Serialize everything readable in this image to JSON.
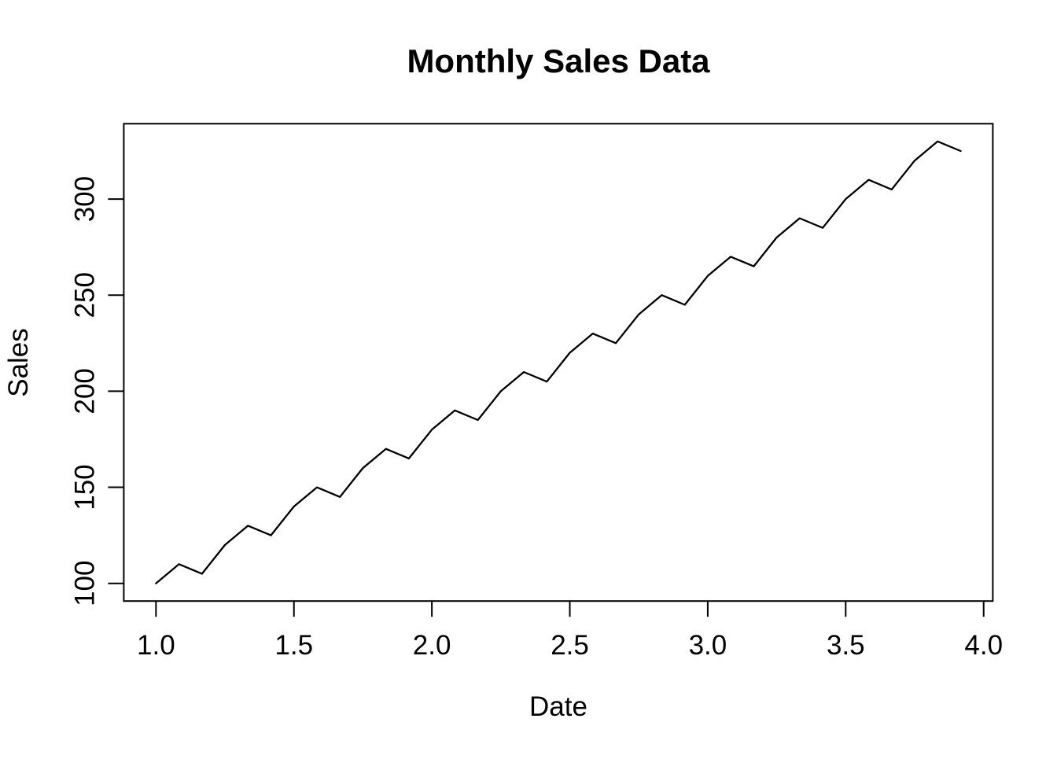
{
  "figure": {
    "background": "#ffffff",
    "foreground": "#000000"
  },
  "chart_data": {
    "type": "line",
    "title": "Monthly Sales Data",
    "xlabel": "Date",
    "ylabel": "Sales",
    "line_color": "#000000",
    "x": [
      1.0,
      1.0833,
      1.1667,
      1.25,
      1.3333,
      1.4167,
      1.5,
      1.5833,
      1.6667,
      1.75,
      1.8333,
      1.9167,
      2.0,
      2.0833,
      2.1667,
      2.25,
      2.3333,
      2.4167,
      2.5,
      2.5833,
      2.6667,
      2.75,
      2.8333,
      2.9167,
      3.0,
      3.0833,
      3.1667,
      3.25,
      3.3333,
      3.4167,
      3.5,
      3.5833,
      3.6667,
      3.75,
      3.8333,
      3.9167
    ],
    "y": [
      100,
      110,
      105,
      120,
      130,
      125,
      140,
      150,
      145,
      160,
      170,
      165,
      180,
      190,
      185,
      200,
      210,
      205,
      220,
      230,
      225,
      240,
      250,
      245,
      260,
      270,
      265,
      280,
      290,
      285,
      300,
      310,
      305,
      320,
      330,
      325
    ],
    "xlim": [
      0.8833,
      4.0333
    ],
    "ylim": [
      90.8,
      339.2
    ],
    "xticks": {
      "values": [
        1.0,
        1.5,
        2.0,
        2.5,
        3.0,
        3.5,
        4.0
      ],
      "labels": [
        "1.0",
        "1.5",
        "2.0",
        "2.5",
        "3.0",
        "3.5",
        "4.0"
      ]
    },
    "yticks": {
      "values": [
        100,
        150,
        200,
        250,
        300
      ],
      "labels": [
        "100",
        "150",
        "200",
        "250",
        "300"
      ]
    },
    "grid": false,
    "legend": null
  }
}
